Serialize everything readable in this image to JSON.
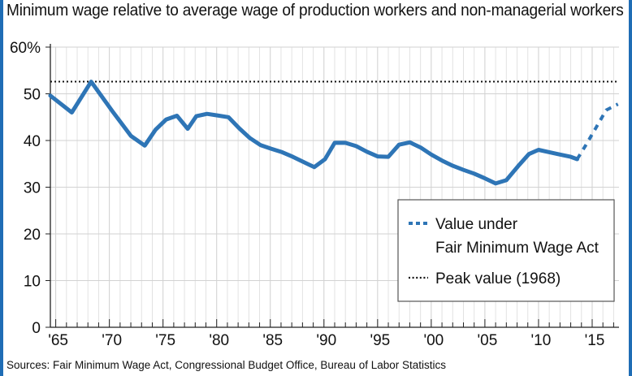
{
  "chart_data": {
    "type": "line",
    "title": "Minimum wage relative to average wage of production workers and non-managerial workers",
    "source": "Sources: Fair Minimum Wage Act, Congressional Budget Office, Bureau of Labor Statistics",
    "xlabel": "",
    "ylabel": "",
    "xlim": [
      1964.5,
      2017.5
    ],
    "ylim": [
      0,
      60
    ],
    "y_ticks": [
      0,
      10,
      20,
      30,
      40,
      50,
      60
    ],
    "y_tick_labels": [
      "0",
      "10",
      "20",
      "30",
      "40",
      "50",
      "60%"
    ],
    "x_ticks": [
      1965,
      1970,
      1975,
      1980,
      1985,
      1990,
      1995,
      2000,
      2005,
      2010,
      2015
    ],
    "x_tick_labels": [
      "'65",
      "'70",
      "'75",
      "'80",
      "'85",
      "'90",
      "'95",
      "'00",
      "'05",
      "'10",
      "'15"
    ],
    "grid": "vertical lines at each year, horizontal lines at each 10",
    "series": [
      {
        "style": "solid",
        "color": "#2e75b6",
        "x": [
          1964.5,
          1966.5,
          1968.3,
          1970.3,
          1972.0,
          1973.3,
          1974.3,
          1975.3,
          1976.3,
          1977.3,
          1978.1,
          1979.1,
          1980.0,
          1981.1,
          1982.1,
          1983.1,
          1984.1,
          1985.1,
          1986.1,
          1987.1,
          1988.1,
          1989.1,
          1990.1,
          1991.0,
          1992.0,
          1993.0,
          1994.0,
          1995.0,
          1996.0,
          1997.0,
          1998.0,
          1999.0,
          2000.0,
          2001.0,
          2002.0,
          2003.0,
          2004.0,
          2005.0,
          2006.0,
          2007.0,
          2008.1,
          2009.1,
          2010.0,
          2011.0,
          2012.0,
          2013.0,
          2013.6
        ],
        "y": [
          49.6,
          46.0,
          52.6,
          46.2,
          41.0,
          38.9,
          42.3,
          44.5,
          45.3,
          42.5,
          45.2,
          45.7,
          45.4,
          45.0,
          42.6,
          40.5,
          39.0,
          38.2,
          37.5,
          36.5,
          35.4,
          34.3,
          36.0,
          39.5,
          39.5,
          38.8,
          37.6,
          36.6,
          36.5,
          39.1,
          39.6,
          38.5,
          37.0,
          35.7,
          34.6,
          33.7,
          32.9,
          31.9,
          30.8,
          31.5,
          34.5,
          37.1,
          38.0,
          37.5,
          37.0,
          36.5,
          36.0
        ]
      },
      {
        "name": "Value under Fair Minimum Wage Act",
        "style": "dashed",
        "color": "#2e75b6",
        "x": [
          2013.6,
          2014.4,
          2015.3,
          2016.3,
          2017.4
        ],
        "y": [
          36.0,
          39.0,
          42.5,
          46.5,
          47.8
        ]
      }
    ],
    "reference_lines": [
      {
        "name": "Peak  value (1968)",
        "style": "dotted",
        "color": "#111111",
        "y": 52.6
      }
    ],
    "legend": {
      "placement": "lower-right",
      "entries": [
        {
          "style": "dashed",
          "line1": "Value under",
          "line2": "Fair Minimum Wage Act"
        },
        {
          "style": "dotted",
          "line1": "Peak  value (1968)"
        }
      ]
    }
  }
}
